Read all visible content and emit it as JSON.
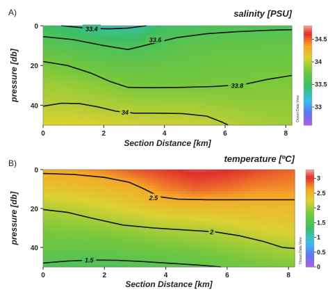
{
  "chart_data": [
    {
      "type": "heatmap",
      "panel_label": "A)",
      "title": "salinity [PSU]",
      "xlabel": "Section Distance [km]",
      "ylabel": "pressure [db]",
      "xlim": [
        0,
        8.2
      ],
      "ylim": [
        0,
        50
      ],
      "y_inverted": true,
      "x_ticks": [
        0,
        2,
        4,
        6,
        8
      ],
      "y_ticks": [
        0,
        20,
        40
      ],
      "colorbar": {
        "min": 32.6,
        "max": 34.8,
        "ticks": [
          33,
          33.5,
          34,
          34.5
        ],
        "tick_labels": [
          "33",
          "33.5",
          "34",
          "34.5"
        ]
      },
      "contours": [
        {
          "level": 33.4,
          "label": "33.4",
          "label_at": [
            1.6,
            1.5
          ],
          "points": [
            [
              0.6,
              0
            ],
            [
              1.0,
              0.6
            ],
            [
              1.6,
              1.4
            ],
            [
              2.2,
              1.6
            ],
            [
              2.8,
              1.2
            ],
            [
              3.4,
              0
            ]
          ]
        },
        {
          "level": 33.6,
          "label": "33.6",
          "label_at": [
            3.7,
            7
          ],
          "points": [
            [
              0,
              5.5
            ],
            [
              1.0,
              7
            ],
            [
              2.0,
              10
            ],
            [
              2.8,
              12
            ],
            [
              3.6,
              9
            ],
            [
              4.4,
              6
            ],
            [
              5.4,
              4
            ],
            [
              6.4,
              3
            ],
            [
              7.4,
              2.3
            ],
            [
              8.2,
              2
            ]
          ]
        },
        {
          "level": 33.8,
          "label": "33.8",
          "label_at": [
            6.4,
            30
          ],
          "points": [
            [
              0,
              18
            ],
            [
              0.8,
              20
            ],
            [
              1.6,
              24
            ],
            [
              2.2,
              28
            ],
            [
              2.8,
              31
            ],
            [
              3.6,
              31.2
            ],
            [
              4.6,
              31
            ],
            [
              5.6,
              30.6
            ],
            [
              6.6,
              29.6
            ],
            [
              7.4,
              27
            ],
            [
              8.2,
              25
            ]
          ]
        },
        {
          "level": 34,
          "label": "34",
          "label_at": [
            2.7,
            43.5
          ],
          "points": [
            [
              0,
              40.5
            ],
            [
              0.6,
              39
            ],
            [
              1.2,
              39.2
            ],
            [
              1.8,
              40.8
            ],
            [
              2.4,
              43
            ],
            [
              3.0,
              44
            ],
            [
              3.8,
              44
            ],
            [
              4.6,
              44.2
            ],
            [
              5.4,
              45.5
            ],
            [
              5.9,
              48.5
            ],
            [
              6.1,
              50
            ]
          ]
        }
      ],
      "field": {
        "levels": [
          33.2,
          33.4,
          33.6,
          33.8,
          34.0,
          34.2
        ],
        "x": [
          0,
          1,
          2,
          3,
          4,
          5,
          6,
          7,
          8.2
        ],
        "y": [
          0,
          10,
          20,
          30,
          40,
          50
        ],
        "values": [
          [
            33.5,
            33.4,
            33.3,
            33.3,
            33.5,
            33.55,
            33.58,
            33.6,
            33.6
          ],
          [
            33.65,
            33.62,
            33.58,
            33.56,
            33.62,
            33.68,
            33.7,
            33.7,
            33.72
          ],
          [
            33.82,
            33.76,
            33.72,
            33.7,
            33.72,
            33.74,
            33.76,
            33.76,
            33.78
          ],
          [
            33.92,
            33.9,
            33.86,
            33.8,
            33.8,
            33.8,
            33.81,
            33.83,
            33.84
          ],
          [
            34.0,
            33.98,
            33.96,
            33.94,
            33.94,
            33.93,
            33.9,
            33.88,
            33.88
          ],
          [
            34.1,
            34.1,
            34.08,
            34.06,
            34.05,
            34.04,
            34.0,
            33.95,
            33.92
          ]
        ]
      },
      "watermark": "Ocean Data View"
    },
    {
      "type": "heatmap",
      "panel_label": "B)",
      "title": "temperature [ºC]",
      "xlabel": "Section Distance [km]",
      "ylabel": "pressure [db]",
      "xlim": [
        0,
        8.2
      ],
      "ylim": [
        0,
        50
      ],
      "y_inverted": true,
      "x_ticks": [
        0,
        2,
        4,
        6,
        8
      ],
      "y_ticks": [
        0,
        20,
        40
      ],
      "colorbar": {
        "min": 0,
        "max": 3.3,
        "ticks": [
          0,
          0.5,
          1,
          1.5,
          2,
          2.5,
          3
        ],
        "tick_labels": [
          "0",
          "0.5",
          "1",
          "1.5",
          "2",
          "2.5",
          "3"
        ]
      },
      "contours": [
        {
          "level": 2.5,
          "label": "2.5",
          "label_at": [
            3.6,
            14.5
          ],
          "points": [
            [
              0,
              2
            ],
            [
              1.0,
              2.5
            ],
            [
              2.0,
              4
            ],
            [
              2.8,
              6.5
            ],
            [
              3.3,
              10
            ],
            [
              3.8,
              14
            ],
            [
              4.4,
              15.2
            ],
            [
              5.4,
              15.5
            ],
            [
              6.6,
              15.5
            ],
            [
              7.6,
              15.5
            ],
            [
              8.2,
              15.5
            ]
          ]
        },
        {
          "level": 2,
          "label": "2",
          "label_at": [
            5.5,
            32
          ],
          "points": [
            [
              0,
              20.5
            ],
            [
              0.8,
              22
            ],
            [
              1.6,
              25
            ],
            [
              2.6,
              28.5
            ],
            [
              3.6,
              30
            ],
            [
              4.6,
              31
            ],
            [
              5.6,
              32
            ],
            [
              6.4,
              34
            ],
            [
              7.2,
              37
            ],
            [
              7.8,
              40
            ],
            [
              8.2,
              40.5
            ]
          ]
        },
        {
          "level": 1.5,
          "label": "1.5",
          "label_at": [
            1.5,
            46.5
          ],
          "points": [
            [
              0,
              48
            ],
            [
              0.8,
              47
            ],
            [
              1.6,
              46.5
            ],
            [
              2.4,
              46.6
            ],
            [
              3.2,
              47.2
            ],
            [
              4.0,
              48
            ],
            [
              5.0,
              49
            ],
            [
              5.8,
              50
            ]
          ]
        }
      ],
      "field": {
        "levels": [
          1.2,
          1.5,
          1.8,
          2.0,
          2.3,
          2.5,
          2.8,
          3.0
        ],
        "x": [
          0,
          1,
          2,
          3,
          4,
          5,
          6,
          7,
          8.2
        ],
        "y": [
          0,
          10,
          20,
          30,
          40,
          50
        ],
        "values": [
          [
            2.6,
            2.65,
            2.75,
            2.9,
            3.0,
            3.1,
            3.05,
            2.95,
            2.85
          ],
          [
            2.35,
            2.4,
            2.45,
            2.55,
            2.75,
            2.85,
            2.8,
            2.72,
            2.7
          ],
          [
            2.05,
            2.1,
            2.2,
            2.3,
            2.4,
            2.42,
            2.45,
            2.45,
            2.45
          ],
          [
            1.85,
            1.88,
            1.92,
            1.98,
            2.05,
            2.08,
            2.15,
            2.25,
            2.3
          ],
          [
            1.7,
            1.68,
            1.7,
            1.75,
            1.8,
            1.85,
            1.92,
            1.98,
            2.05
          ],
          [
            1.45,
            1.48,
            1.5,
            1.52,
            1.55,
            1.6,
            1.7,
            1.8,
            1.85
          ]
        ]
      },
      "watermark": "Ocean Data View"
    }
  ]
}
